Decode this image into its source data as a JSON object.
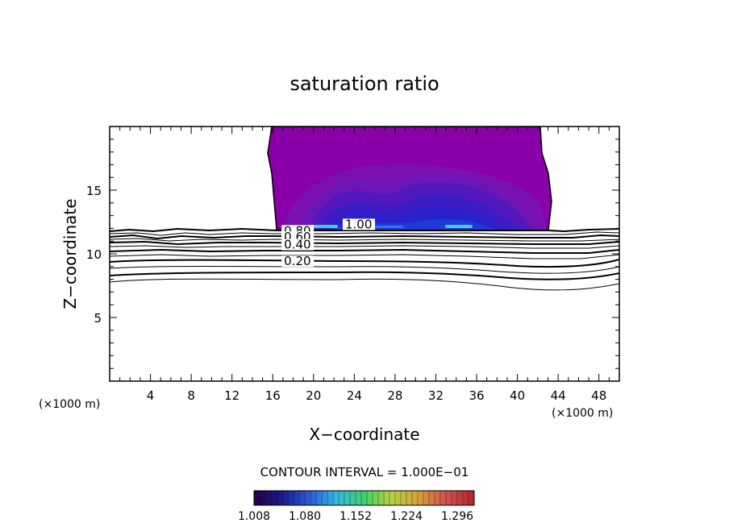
{
  "chart_data": {
    "type": "contour",
    "title": "saturation ratio",
    "xlabel": "X−coordinate",
    "ylabel": "Z−coordinate",
    "x_unit_left": "(×1000 m)",
    "x_unit_right": "(×1000 m)",
    "xlim": [
      0,
      50
    ],
    "ylim": [
      0,
      20
    ],
    "x_ticks": [
      "4",
      "8",
      "12",
      "16",
      "20",
      "24",
      "28",
      "32",
      "36",
      "40",
      "44",
      "48"
    ],
    "y_ticks": [
      "5",
      "10",
      "15"
    ],
    "contour_interval_text": "CONTOUR INTERVAL = 1.000E−01",
    "contour_labels": [
      {
        "text": "1.00",
        "x": 23.1,
        "z": 12.0
      },
      {
        "text": "0.80",
        "x": 17.1,
        "z": 11.5
      },
      {
        "text": "0.60",
        "x": 17.1,
        "z": 11.0
      },
      {
        "text": "0.40",
        "x": 17.1,
        "z": 10.4
      },
      {
        "text": "0.20",
        "x": 17.1,
        "z": 9.1
      }
    ],
    "supersaturated_region": {
      "x_range": [
        16,
        43
      ],
      "z_range": [
        12,
        20
      ]
    },
    "colorbar": {
      "min": 1.008,
      "max": 1.32,
      "ticks": [
        "1.008",
        "1.080",
        "1.152",
        "1.224",
        "1.296"
      ],
      "colors": [
        "#2a0040",
        "#1a1a8c",
        "#2c5ad8",
        "#36b8e0",
        "#3cd26e",
        "#b8d23c",
        "#d2a03c",
        "#d25050",
        "#b02828"
      ]
    }
  }
}
